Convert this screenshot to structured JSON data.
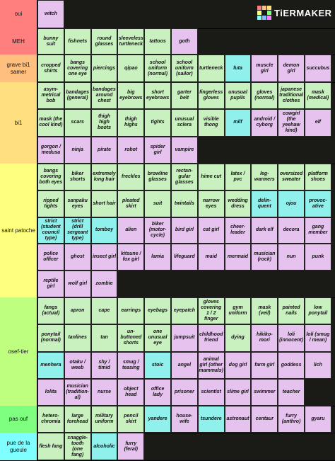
{
  "brand": {
    "logo_text": "TiERMAKER",
    "logo_colors": [
      "#ff7f7f",
      "#ffbf7f",
      "#ffdf7f",
      "#ffff7f",
      "#bfff7f",
      "#7fff7f",
      "#7fffff",
      "#7fbfff",
      "#ff7fff"
    ]
  },
  "colors": {
    "green": "#c9f0bf",
    "pink": "#e6c3ee",
    "cyan": "#8ff0ec"
  },
  "tiers": [
    {
      "label": "oui",
      "color": "#ff7f7f",
      "items": [
        [
          "witch",
          "pink"
        ]
      ]
    },
    {
      "label": "MEH",
      "color": "#ff7f7f",
      "items": [
        [
          "bunny suit",
          "green"
        ],
        [
          "fishnets",
          "green"
        ],
        [
          "round glasses",
          "green"
        ],
        [
          "sleeveless turtleneck",
          "green"
        ],
        [
          "tattoos",
          "green"
        ],
        [
          "goth",
          "pink"
        ]
      ]
    },
    {
      "label": "grave bi1 samer",
      "color": "#ffbf7f",
      "items": [
        [
          "cropped shirts",
          "green"
        ],
        [
          "bangs covering one eye",
          "green"
        ],
        [
          "piercings",
          "green"
        ],
        [
          "qipao",
          "green"
        ],
        [
          "school uniform (normal)",
          "green"
        ],
        [
          "school uniform (sailor)",
          "green"
        ],
        [
          "turtleneck",
          "green"
        ],
        [
          "futa",
          "cyan"
        ],
        [
          "muscle girl",
          "pink"
        ],
        [
          "demon girl",
          "pink"
        ],
        [
          "succubus",
          "pink"
        ]
      ]
    },
    {
      "label": "bi1",
      "color": "#ffdf7f",
      "items": [
        [
          "asym-metrical bob",
          "green"
        ],
        [
          "bandages (general)",
          "green"
        ],
        [
          "bandages around chest",
          "green"
        ],
        [
          "big eyebrows",
          "green"
        ],
        [
          "short eyebrows",
          "green"
        ],
        [
          "garter belt",
          "green"
        ],
        [
          "fingerless gloves",
          "green"
        ],
        [
          "unusual pupils",
          "green"
        ],
        [
          "gloves (normal)",
          "green"
        ],
        [
          "japanese traditional clothes",
          "green"
        ],
        [
          "mask (medical)",
          "green"
        ],
        [
          "mask (the cool kind)",
          "green"
        ],
        [
          "scars",
          "green"
        ],
        [
          "thigh high boots",
          "green"
        ],
        [
          "thigh highs",
          "green"
        ],
        [
          "tights",
          "green"
        ],
        [
          "unusual sclera",
          "green"
        ],
        [
          "visible thong",
          "green"
        ],
        [
          "milf",
          "cyan"
        ],
        [
          "android / cyborg",
          "pink"
        ],
        [
          "cowgirl (the yeehaw kind)",
          "pink"
        ],
        [
          "elf",
          "pink"
        ],
        [
          "gorgon / medusa",
          "pink"
        ],
        [
          "ninja",
          "pink"
        ],
        [
          "pirate",
          "pink"
        ],
        [
          "robot",
          "pink"
        ],
        [
          "spider girl",
          "pink"
        ],
        [
          "vampire",
          "pink"
        ]
      ]
    },
    {
      "label": "saint patoche",
      "color": "#ffff7f",
      "items": [
        [
          "bangs covering both eyes",
          "green"
        ],
        [
          "biker shorts",
          "green"
        ],
        [
          "extremely long hair",
          "green"
        ],
        [
          "freckles",
          "green"
        ],
        [
          "browline glasses",
          "green"
        ],
        [
          "rectan-gular glasses",
          "green"
        ],
        [
          "hime cut",
          "green"
        ],
        [
          "latex / pvc",
          "green"
        ],
        [
          "leg-warmers",
          "green"
        ],
        [
          "oversized sweater",
          "green"
        ],
        [
          "platform shoes",
          "green"
        ],
        [
          "ripped tights",
          "green"
        ],
        [
          "sanpaku eyes",
          "green"
        ],
        [
          "short hair",
          "green"
        ],
        [
          "pleated skirt",
          "green"
        ],
        [
          "suit",
          "green"
        ],
        [
          "twintails",
          "green"
        ],
        [
          "narrow eyes",
          "green"
        ],
        [
          "wedding dress",
          "green"
        ],
        [
          "delin-quent",
          "cyan"
        ],
        [
          "ojou",
          "cyan"
        ],
        [
          "provoc-ative",
          "cyan"
        ],
        [
          "strict (student council type)",
          "cyan"
        ],
        [
          "strict (drill sergeant type)",
          "cyan"
        ],
        [
          "tomboy",
          "cyan"
        ],
        [
          "alien",
          "pink"
        ],
        [
          "biker (motor-cycle)",
          "pink"
        ],
        [
          "bird girl",
          "pink"
        ],
        [
          "cat girl",
          "pink"
        ],
        [
          "cheer-leader",
          "pink"
        ],
        [
          "dark elf",
          "pink"
        ],
        [
          "decora",
          "pink"
        ],
        [
          "gang member",
          "pink"
        ],
        [
          "police officer",
          "pink"
        ],
        [
          "ghost",
          "pink"
        ],
        [
          "insect girl",
          "pink"
        ],
        [
          "kitsune / fox girl",
          "pink"
        ],
        [
          "lamia",
          "pink"
        ],
        [
          "lifeguard",
          "pink"
        ],
        [
          "maid",
          "pink"
        ],
        [
          "mermaid",
          "pink"
        ],
        [
          "musician (rock)",
          "pink"
        ],
        [
          "nun",
          "pink"
        ],
        [
          "punk",
          "pink"
        ],
        [
          "reptile girl",
          "pink"
        ],
        [
          "wolf girl",
          "pink"
        ],
        [
          "zombie",
          "pink"
        ]
      ]
    },
    {
      "label": "osef-tier",
      "color": "#bfff7f",
      "items": [
        [
          "fangs (actual)",
          "green"
        ],
        [
          "apron",
          "green"
        ],
        [
          "cape",
          "green"
        ],
        [
          "earrings",
          "green"
        ],
        [
          "eyebags",
          "green"
        ],
        [
          "eyepatch",
          "green"
        ],
        [
          "gloves covering 1 / 2 finger",
          "green"
        ],
        [
          "gym uniform",
          "green"
        ],
        [
          "mask (veil)",
          "green"
        ],
        [
          "painted nails",
          "green"
        ],
        [
          "low ponytail",
          "green"
        ],
        [
          "ponytail (normal)",
          "green"
        ],
        [
          "tanlines",
          "green"
        ],
        [
          "tan",
          "green"
        ],
        [
          "un-buttoned shorts",
          "green"
        ],
        [
          "one unusual eye",
          "green"
        ],
        [
          "jumpsuit",
          "pink"
        ],
        [
          "childhood friend",
          "pink"
        ],
        [
          "dying",
          "green"
        ],
        [
          "hikiko-mori",
          "pink"
        ],
        [
          "loli (innocent)",
          "pink"
        ],
        [
          "loli (smug / mean)",
          "pink"
        ],
        [
          "menhera",
          "cyan"
        ],
        [
          "otaku / weeb",
          "pink"
        ],
        [
          "shy / timid",
          "pink"
        ],
        [
          "smug / teasing",
          "pink"
        ],
        [
          "stoic",
          "cyan"
        ],
        [
          "angel",
          "pink"
        ],
        [
          "animal girl (other mammals)",
          "pink"
        ],
        [
          "dog girl",
          "pink"
        ],
        [
          "farm girl",
          "pink"
        ],
        [
          "goddess",
          "pink"
        ],
        [
          "lich",
          "pink"
        ],
        [
          "lolita",
          "pink"
        ],
        [
          "musician (tradition-al)",
          "pink"
        ],
        [
          "nurse",
          "pink"
        ],
        [
          "object head",
          "pink"
        ],
        [
          "office lady",
          "pink"
        ],
        [
          "prisoner",
          "pink"
        ],
        [
          "scientist",
          "pink"
        ],
        [
          "slime girl",
          "pink"
        ],
        [
          "swimmer",
          "pink"
        ],
        [
          "teacher",
          "pink"
        ]
      ]
    },
    {
      "label": "pas ouf",
      "color": "#7fff7f",
      "items": [
        [
          "hetero-chromia",
          "green"
        ],
        [
          "large forehead",
          "green"
        ],
        [
          "military uniform",
          "green"
        ],
        [
          "pencil skirt",
          "green"
        ],
        [
          "yandere",
          "cyan"
        ],
        [
          "house-wife",
          "pink"
        ],
        [
          "tsundere",
          "cyan"
        ],
        [
          "astronaut",
          "pink"
        ],
        [
          "centaur",
          "pink"
        ],
        [
          "furry (anthro)",
          "pink"
        ],
        [
          "gyaru",
          "pink"
        ]
      ]
    },
    {
      "label": "pue de la gueule",
      "color": "#7fffff",
      "items": [
        [
          "flesh fang",
          "green"
        ],
        [
          "snaggle-tooth (one fang)",
          "green"
        ],
        [
          "alcoholic",
          "cyan"
        ],
        [
          "furry (feral)",
          "pink"
        ]
      ]
    }
  ]
}
